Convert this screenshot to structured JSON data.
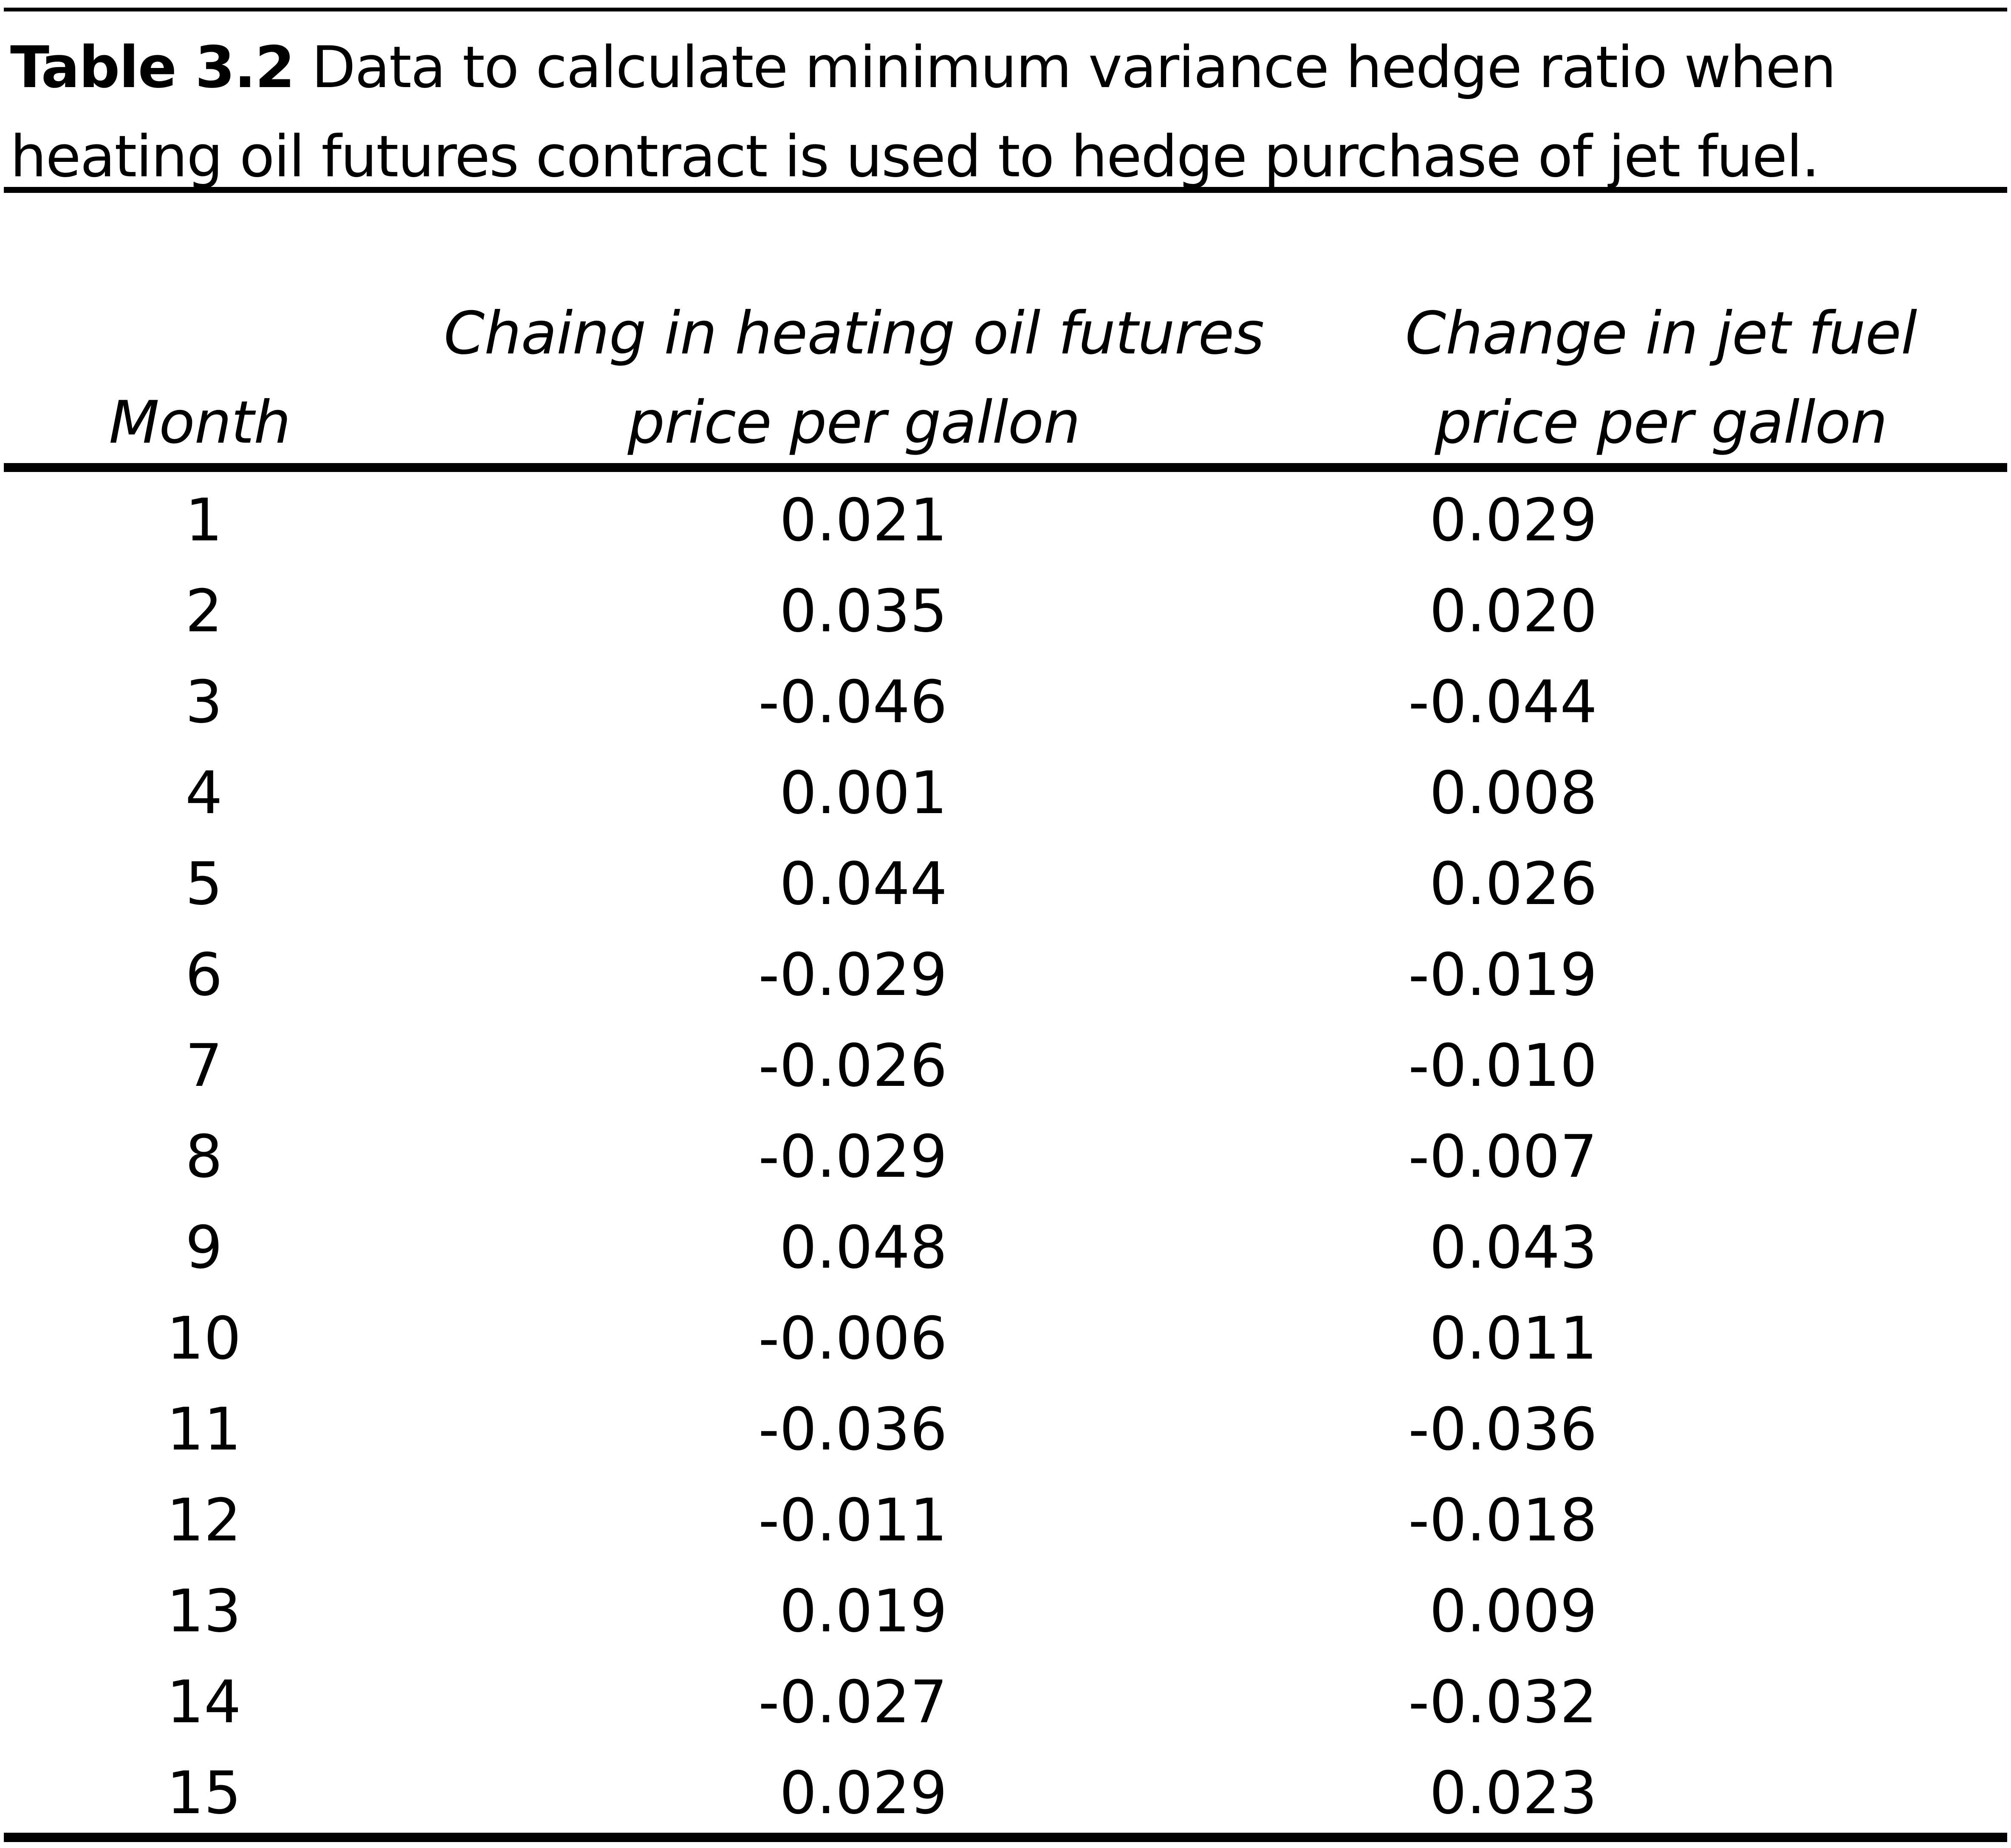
{
  "caption": {
    "label": "Table 3.2",
    "line1": " Data to calculate minimum variance hedge ratio when",
    "line2": "heating oil futures contract is used to hedge purchase of jet fuel."
  },
  "columns": {
    "month": "Month",
    "heating_oil": [
      "Chaing in heating oil futures",
      "price per gallon"
    ],
    "jet_fuel": [
      "Change in jet fuel",
      "price per gallon"
    ]
  },
  "rows": [
    {
      "month": "1",
      "heating_oil": "0.021",
      "jet_fuel": "0.029"
    },
    {
      "month": "2",
      "heating_oil": "0.035",
      "jet_fuel": "0.020"
    },
    {
      "month": "3",
      "heating_oil": "-0.046",
      "jet_fuel": "-0.044"
    },
    {
      "month": "4",
      "heating_oil": "0.001",
      "jet_fuel": "0.008"
    },
    {
      "month": "5",
      "heating_oil": "0.044",
      "jet_fuel": "0.026"
    },
    {
      "month": "6",
      "heating_oil": "-0.029",
      "jet_fuel": "-0.019"
    },
    {
      "month": "7",
      "heating_oil": "-0.026",
      "jet_fuel": "-0.010"
    },
    {
      "month": "8",
      "heating_oil": "-0.029",
      "jet_fuel": "-0.007"
    },
    {
      "month": "9",
      "heating_oil": "0.048",
      "jet_fuel": "0.043"
    },
    {
      "month": "10",
      "heating_oil": "-0.006",
      "jet_fuel": "0.011"
    },
    {
      "month": "11",
      "heating_oil": "-0.036",
      "jet_fuel": "-0.036"
    },
    {
      "month": "12",
      "heating_oil": "-0.011",
      "jet_fuel": "-0.018"
    },
    {
      "month": "13",
      "heating_oil": "0.019",
      "jet_fuel": "0.009"
    },
    {
      "month": "14",
      "heating_oil": "-0.027",
      "jet_fuel": "-0.032"
    },
    {
      "month": "15",
      "heating_oil": "0.029",
      "jet_fuel": "0.023"
    }
  ]
}
